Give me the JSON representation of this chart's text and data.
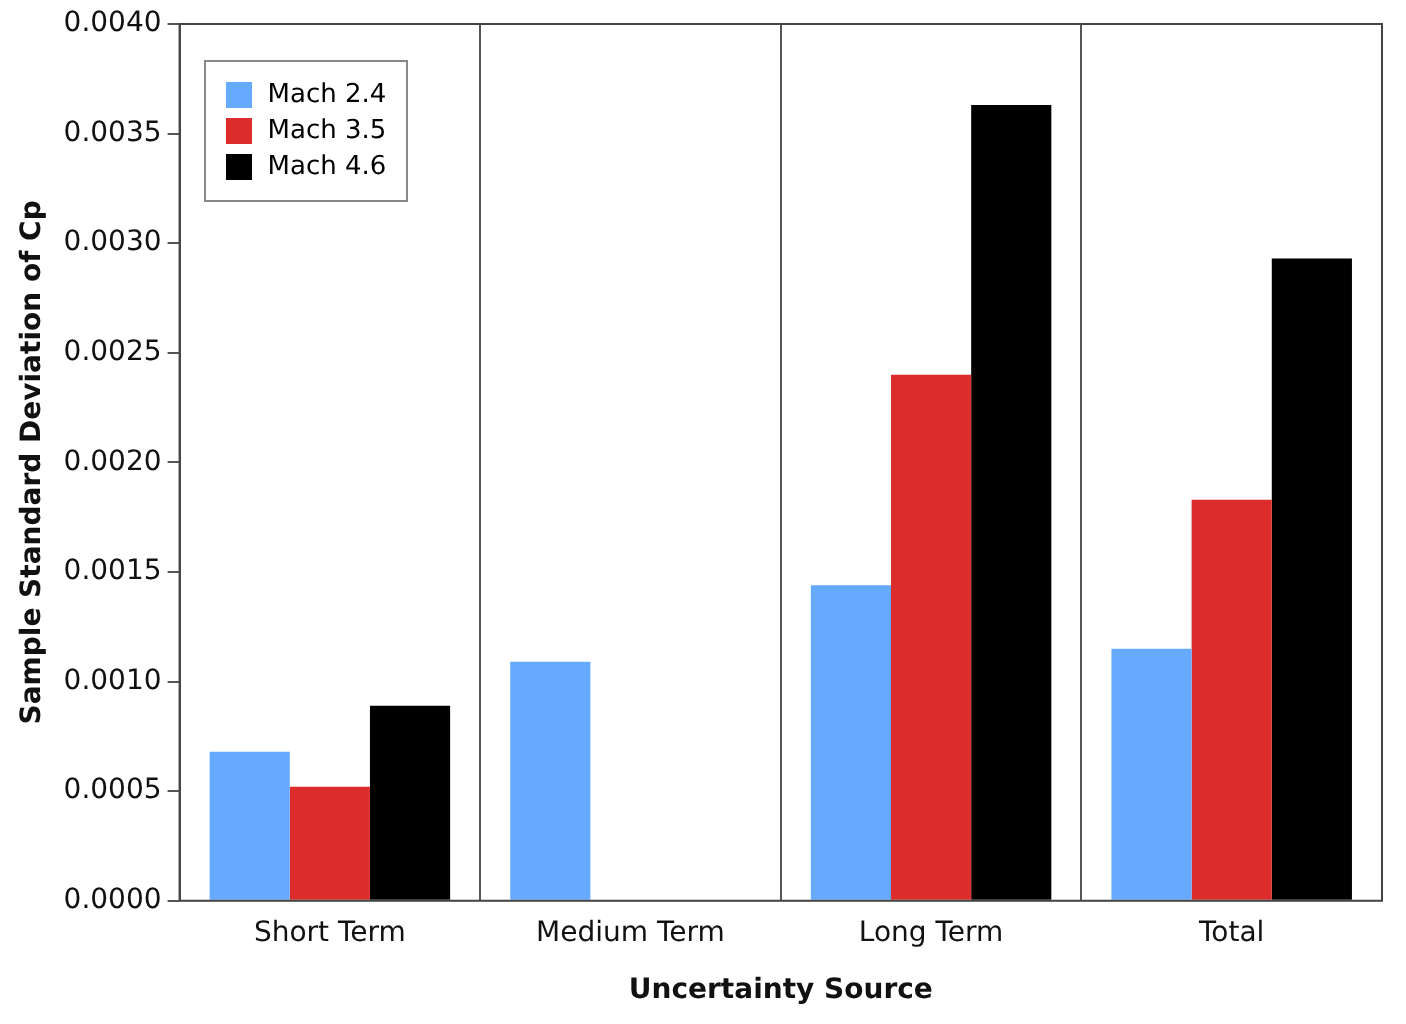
{
  "chart_data": {
    "type": "bar",
    "xlabel": "Uncertainty Source",
    "ylabel": "Sample Standard Deviation of Cp",
    "categories": [
      "Short Term",
      "Medium Term",
      "Long Term",
      "Total"
    ],
    "series": [
      {
        "name": "Mach 2.4",
        "color": "#66aaff",
        "values": [
          0.00068,
          0.00109,
          0.00144,
          0.00115
        ]
      },
      {
        "name": "Mach 3.5",
        "color": "#dd2c2c",
        "values": [
          0.00052,
          null,
          0.0024,
          0.00183
        ]
      },
      {
        "name": "Mach 4.6",
        "color": "#000000",
        "values": [
          0.00089,
          null,
          0.00363,
          0.00293
        ]
      }
    ],
    "ylim": [
      0,
      0.004
    ],
    "yticks": [
      {
        "value": 0,
        "label": "0.0000"
      },
      {
        "value": 0.0005,
        "label": "0.0005"
      },
      {
        "value": 0.001,
        "label": "0.0010"
      },
      {
        "value": 0.0015,
        "label": "0.0015"
      },
      {
        "value": 0.002,
        "label": "0.0020"
      },
      {
        "value": 0.0025,
        "label": "0.0025"
      },
      {
        "value": 0.003,
        "label": "0.0030"
      },
      {
        "value": 0.0035,
        "label": "0.0035"
      },
      {
        "value": 0.004,
        "label": "0.0040"
      }
    ],
    "grid": "x",
    "legend": "top left"
  }
}
